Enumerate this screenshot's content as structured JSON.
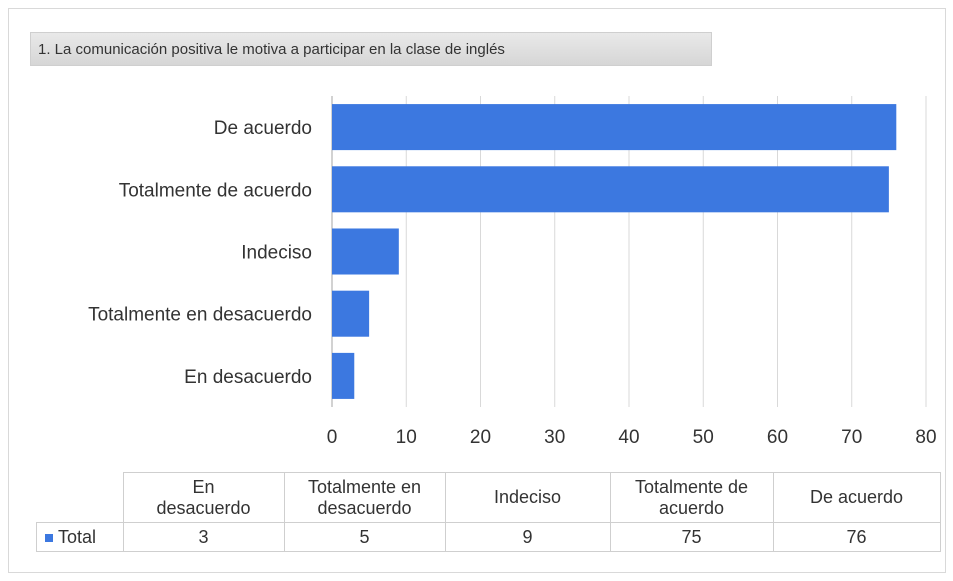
{
  "title": "1. La comunicación positiva le motiva a participar en la clase de inglés",
  "chart_data": {
    "type": "bar",
    "orientation": "horizontal",
    "categories": [
      "De acuerdo",
      "Totalmente de acuerdo",
      "Indeciso",
      "Totalmente en desacuerdo",
      "En desacuerdo"
    ],
    "series": [
      {
        "name": "Total",
        "values": [
          76,
          75,
          9,
          5,
          3
        ],
        "color": "#3c78e0"
      }
    ],
    "xlim": [
      0,
      80
    ],
    "xticks": [
      "0",
      "10",
      "20",
      "30",
      "40",
      "50",
      "60",
      "70",
      "80"
    ],
    "grid": true
  },
  "table": {
    "headers": [
      "En\ndesacuerdo",
      "Totalmente en\ndesacuerdo",
      "Indeciso",
      "Totalmente de\nacuerdo",
      "De acuerdo"
    ],
    "row_label": "Total",
    "values": [
      "3",
      "5",
      "9",
      "75",
      "76"
    ]
  }
}
